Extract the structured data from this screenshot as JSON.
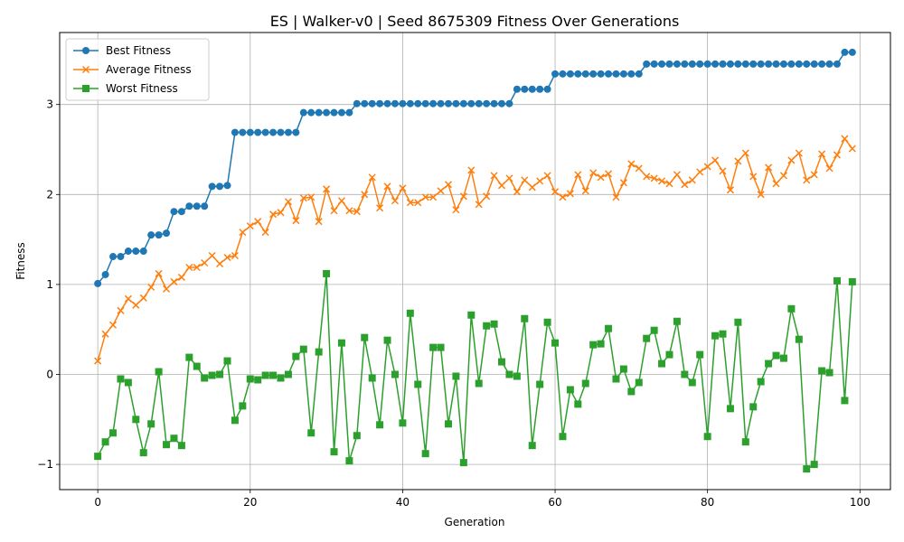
{
  "chart_data": {
    "type": "line",
    "title": "ES | Walker-v0 | Seed 8675309 Fitness Over Generations",
    "xlabel": "Generation",
    "ylabel": "Fitness",
    "xlim": [
      -5,
      104
    ],
    "ylim": [
      -1.28,
      3.8
    ],
    "xticks": [
      0,
      20,
      40,
      60,
      80,
      100
    ],
    "yticks": [
      -1,
      0,
      1,
      2,
      3
    ],
    "grid": true,
    "legend_position": "top-left",
    "series": [
      {
        "name": "Best Fitness",
        "color": "#1f77b4",
        "marker": "circle",
        "values": [
          1.01,
          1.11,
          1.31,
          1.31,
          1.37,
          1.37,
          1.37,
          1.55,
          1.55,
          1.57,
          1.81,
          1.81,
          1.87,
          1.87,
          1.87,
          2.09,
          2.09,
          2.1,
          2.69,
          2.69,
          2.69,
          2.69,
          2.69,
          2.69,
          2.69,
          2.69,
          2.69,
          2.91,
          2.91,
          2.91,
          2.91,
          2.91,
          2.91,
          2.91,
          3.01,
          3.01,
          3.01,
          3.01,
          3.01,
          3.01,
          3.01,
          3.01,
          3.01,
          3.01,
          3.01,
          3.01,
          3.01,
          3.01,
          3.01,
          3.01,
          3.01,
          3.01,
          3.01,
          3.01,
          3.01,
          3.17,
          3.17,
          3.17,
          3.17,
          3.17,
          3.34,
          3.34,
          3.34,
          3.34,
          3.34,
          3.34,
          3.34,
          3.34,
          3.34,
          3.34,
          3.34,
          3.34,
          3.45,
          3.45,
          3.45,
          3.45,
          3.45,
          3.45,
          3.45,
          3.45,
          3.45,
          3.45,
          3.45,
          3.45,
          3.45,
          3.45,
          3.45,
          3.45,
          3.45,
          3.45,
          3.45,
          3.45,
          3.45,
          3.45,
          3.45,
          3.45,
          3.45,
          3.45,
          3.58,
          3.58
        ]
      },
      {
        "name": "Average Fitness",
        "color": "#ff7f0e",
        "marker": "x",
        "values": [
          0.15,
          0.45,
          0.55,
          0.71,
          0.84,
          0.77,
          0.85,
          0.97,
          1.12,
          0.95,
          1.03,
          1.08,
          1.19,
          1.19,
          1.24,
          1.32,
          1.23,
          1.3,
          1.32,
          1.58,
          1.65,
          1.7,
          1.58,
          1.78,
          1.8,
          1.92,
          1.71,
          1.96,
          1.97,
          1.7,
          2.06,
          1.82,
          1.93,
          1.82,
          1.81,
          2.0,
          2.19,
          1.85,
          2.09,
          1.93,
          2.07,
          1.91,
          1.91,
          1.97,
          1.97,
          2.04,
          2.11,
          1.83,
          1.98,
          2.27,
          1.89,
          1.98,
          2.21,
          2.1,
          2.18,
          2.03,
          2.16,
          2.08,
          2.15,
          2.21,
          2.03,
          1.97,
          2.01,
          2.22,
          2.04,
          2.24,
          2.19,
          2.23,
          1.97,
          2.13,
          2.34,
          2.29,
          2.2,
          2.18,
          2.15,
          2.12,
          2.22,
          2.11,
          2.16,
          2.25,
          2.31,
          2.38,
          2.26,
          2.05,
          2.37,
          2.46,
          2.2,
          2.0,
          2.3,
          2.12,
          2.21,
          2.38,
          2.46,
          2.16,
          2.22,
          2.45,
          2.29,
          2.44,
          2.62,
          2.51
        ]
      },
      {
        "name": "Worst Fitness",
        "color": "#2ca02c",
        "marker": "square",
        "values": [
          -0.91,
          -0.75,
          -0.65,
          -0.05,
          -0.09,
          -0.5,
          -0.87,
          -0.55,
          0.03,
          -0.78,
          -0.71,
          -0.79,
          0.19,
          0.09,
          -0.04,
          -0.01,
          0.0,
          0.15,
          -0.51,
          -0.35,
          -0.05,
          -0.06,
          -0.01,
          -0.01,
          -0.04,
          0.0,
          0.2,
          0.28,
          -0.65,
          0.25,
          1.12,
          -0.86,
          0.35,
          -0.96,
          -0.68,
          0.41,
          -0.04,
          -0.56,
          0.38,
          0.0,
          -0.54,
          0.68,
          -0.11,
          -0.88,
          0.3,
          0.3,
          -0.55,
          -0.02,
          -0.98,
          0.66,
          -0.1,
          0.54,
          0.56,
          0.14,
          0.0,
          -0.02,
          0.62,
          -0.79,
          -0.11,
          0.58,
          0.35,
          -0.69,
          -0.17,
          -0.33,
          -0.1,
          0.33,
          0.34,
          0.51,
          -0.05,
          0.06,
          -0.19,
          -0.09,
          0.4,
          0.49,
          0.12,
          0.22,
          0.59,
          0.0,
          -0.09,
          0.22,
          -0.69,
          0.43,
          0.45,
          -0.38,
          0.58,
          -0.75,
          -0.36,
          -0.08,
          0.12,
          0.21,
          0.18,
          0.73,
          0.39,
          -1.05,
          -1.0,
          0.04,
          0.02,
          1.04,
          -0.29,
          1.03
        ]
      }
    ]
  }
}
